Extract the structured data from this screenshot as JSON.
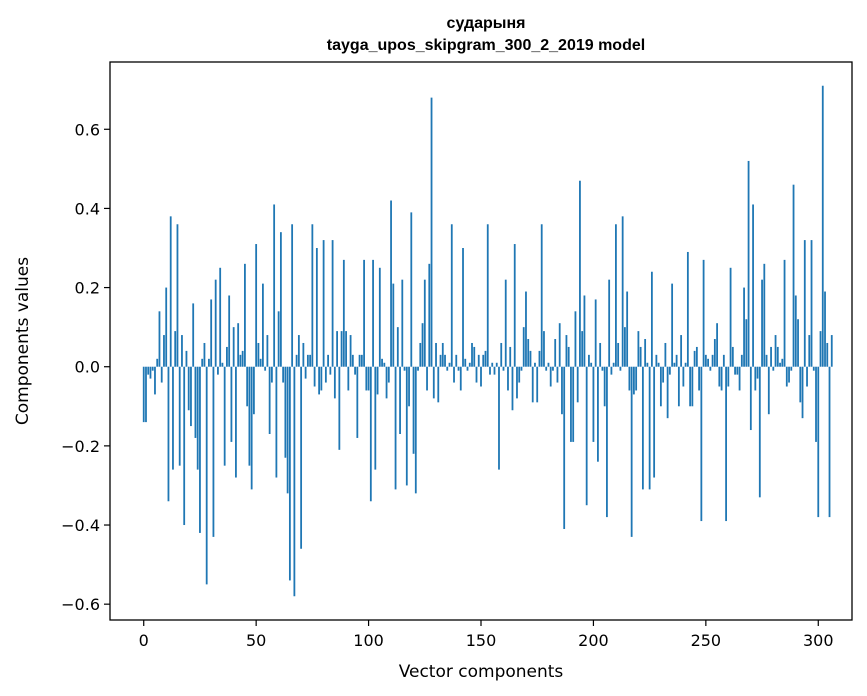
{
  "chart_data": {
    "type": "bar",
    "title": "сударыня",
    "subtitle": "tayga_upos_skipgram_300_2_2019 model",
    "xlabel": "Vector components",
    "ylabel": "Components values",
    "xlim": [
      -15,
      315
    ],
    "ylim": [
      -0.64,
      0.77
    ],
    "xticks": [
      0,
      50,
      100,
      150,
      200,
      250,
      300
    ],
    "yticks": [
      -0.6,
      -0.4,
      -0.2,
      0.0,
      0.2,
      0.4,
      0.6
    ],
    "xtick_labels": [
      "0",
      "50",
      "100",
      "150",
      "200",
      "250",
      "300"
    ],
    "ytick_labels": [
      "−0.6",
      "−0.4",
      "−0.2",
      "0.0",
      "0.2",
      "0.4",
      "0.6"
    ],
    "bar_color": "#1f77b4",
    "values": [
      -0.14,
      -0.14,
      -0.02,
      -0.03,
      -0.01,
      -0.07,
      0.02,
      0.14,
      -0.04,
      0.08,
      0.2,
      -0.34,
      0.38,
      -0.26,
      0.09,
      0.36,
      -0.25,
      0.08,
      -0.4,
      0.04,
      -0.11,
      -0.15,
      0.16,
      -0.18,
      -0.26,
      -0.42,
      0.02,
      0.06,
      -0.55,
      0.02,
      0.17,
      -0.43,
      0.22,
      -0.02,
      0.25,
      0.01,
      -0.25,
      0.05,
      0.18,
      -0.19,
      0.1,
      -0.28,
      0.11,
      0.03,
      0.04,
      0.26,
      -0.1,
      -0.25,
      -0.31,
      -0.12,
      0.31,
      0.06,
      0.02,
      0.21,
      -0.01,
      0.08,
      -0.17,
      -0.04,
      0.41,
      -0.28,
      0.14,
      0.34,
      -0.04,
      -0.23,
      -0.32,
      -0.54,
      0.36,
      -0.58,
      0.03,
      0.08,
      -0.46,
      0.06,
      -0.03,
      0.03,
      0.03,
      0.36,
      -0.05,
      0.3,
      -0.07,
      -0.06,
      0.32,
      -0.04,
      0.03,
      -0.02,
      0.32,
      -0.08,
      0.09,
      -0.21,
      0.09,
      0.27,
      0.09,
      -0.06,
      0.08,
      0.03,
      -0.02,
      -0.18,
      0.03,
      0.03,
      0.27,
      -0.06,
      -0.06,
      -0.34,
      0.27,
      -0.26,
      -0.07,
      0.25,
      0.02,
      0.01,
      -0.08,
      -0.04,
      0.42,
      0.21,
      -0.31,
      0.1,
      -0.17,
      0.22,
      -0.01,
      -0.3,
      -0.1,
      0.39,
      -0.22,
      -0.32,
      -0.01,
      0.06,
      0.11,
      0.22,
      -0.06,
      0.26,
      0.68,
      -0.08,
      0.06,
      -0.09,
      0.03,
      0.06,
      0.03,
      -0.01,
      0.01,
      0.36,
      -0.04,
      0.03,
      -0.01,
      -0.06,
      0.3,
      0.02,
      -0.01,
      0.01,
      0.06,
      0.05,
      -0.04,
      0.03,
      -0.05,
      0.03,
      0.04,
      0.36,
      -0.02,
      0.01,
      -0.02,
      0.01,
      -0.26,
      0.06,
      -0.01,
      0.22,
      -0.06,
      0.05,
      -0.11,
      0.31,
      -0.08,
      -0.04,
      -0.01,
      0.1,
      0.19,
      0.07,
      0.04,
      -0.09,
      0.01,
      -0.09,
      0.04,
      0.36,
      0.09,
      -0.01,
      0.01,
      -0.05,
      -0.01,
      0.07,
      -0.04,
      0.11,
      -0.12,
      -0.41,
      0.08,
      0.05,
      -0.19,
      -0.19,
      0.14,
      -0.09,
      0.47,
      0.09,
      0.18,
      -0.35,
      0.03,
      0.01,
      -0.19,
      0.17,
      -0.24,
      0.06,
      -0.01,
      -0.1,
      -0.38,
      0.22,
      -0.02,
      0.01,
      0.36,
      0.06,
      -0.01,
      0.38,
      0.1,
      0.19,
      -0.06,
      -0.43,
      -0.07,
      -0.06,
      0.09,
      0.05,
      -0.31,
      0.07,
      0.01,
      -0.31,
      0.24,
      -0.28,
      0.03,
      0.01,
      -0.1,
      -0.04,
      0.06,
      -0.13,
      -0.02,
      0.21,
      0.01,
      0.03,
      -0.1,
      0.08,
      -0.05,
      0.01,
      0.29,
      -0.1,
      -0.1,
      0.04,
      0.05,
      -0.06,
      -0.39,
      0.27,
      0.03,
      0.02,
      -0.01,
      0.03,
      0.07,
      0.11,
      -0.05,
      -0.06,
      0.03,
      -0.39,
      -0.05,
      0.25,
      0.05,
      -0.02,
      -0.02,
      -0.06,
      0.03,
      0.2,
      0.12,
      0.52,
      -0.16,
      0.41,
      -0.06,
      -0.03,
      -0.33,
      0.22,
      0.26,
      0.03,
      -0.12,
      0.05,
      -0.01,
      0.08,
      0.05,
      0.01,
      0.02,
      0.27,
      -0.05,
      -0.04,
      -0.01,
      0.46,
      0.18,
      0.12,
      -0.09,
      -0.13,
      0.32,
      -0.05,
      0.08,
      0.32,
      -0.01,
      -0.19,
      -0.38,
      0.09,
      0.71,
      0.19,
      0.06,
      -0.38,
      0.08
    ]
  }
}
